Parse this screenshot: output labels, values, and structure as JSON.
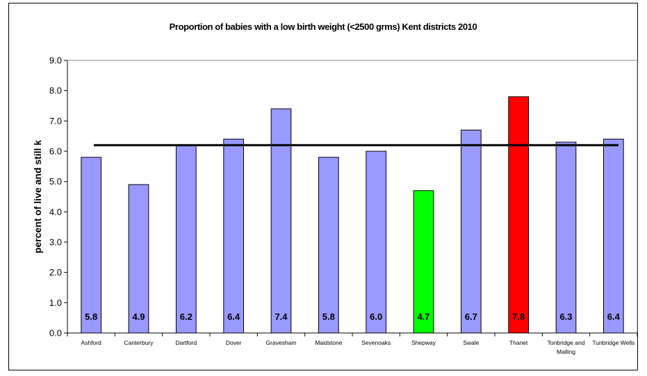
{
  "chart_data": {
    "type": "bar",
    "title": "Proportion of babies with a low birth weight (<2500 grms) Kent districts 2010",
    "ylabel": "percent of live and still k",
    "xlabel": "",
    "ylim": [
      0,
      9
    ],
    "ytick_step": 1,
    "ytick_labels": [
      "0.0",
      "1.0",
      "2.0",
      "3.0",
      "4.0",
      "5.0",
      "6.0",
      "7.0",
      "8.0",
      "9.0"
    ],
    "categories": [
      "Ashford",
      "Canterbury",
      "Dartford",
      "Dover",
      "Gravesham",
      "Maidstone",
      "Sevenoaks",
      "Shepway",
      "Swale",
      "Thanet",
      "Tonbridge and Malling",
      "Tunbridge Wells"
    ],
    "category_lines": [
      [
        "Ashford"
      ],
      [
        "Canterbury"
      ],
      [
        "Dartford"
      ],
      [
        "Dover"
      ],
      [
        "Gravesham"
      ],
      [
        "Maidstone"
      ],
      [
        "Sevenoaks"
      ],
      [
        "Shepway"
      ],
      [
        "Swale"
      ],
      [
        "Thanet"
      ],
      [
        "Tonbridge and",
        "Malling"
      ],
      [
        "Tunbridge Wells"
      ]
    ],
    "values": [
      5.8,
      4.9,
      6.2,
      6.4,
      7.4,
      5.8,
      6.0,
      4.7,
      6.7,
      7.8,
      6.3,
      6.4
    ],
    "data_labels": [
      "5.8",
      "4.9",
      "6.2",
      "6.4",
      "7.4",
      "5.8",
      "6.0",
      "4.7",
      "6.7",
      "7.8",
      "6.3",
      "6.4"
    ],
    "reference_line": 6.2,
    "colors": {
      "default": "#9999FF",
      "highlight_low": "#00FF00",
      "highlight_high": "#FF0000",
      "bar_outline": "#000000",
      "reference_line": "#000000"
    },
    "bar_colors": [
      "#9999FF",
      "#9999FF",
      "#9999FF",
      "#9999FF",
      "#9999FF",
      "#9999FF",
      "#9999FF",
      "#00FF00",
      "#9999FF",
      "#FF0000",
      "#9999FF",
      "#9999FF"
    ],
    "grid": false,
    "legend": "none"
  }
}
